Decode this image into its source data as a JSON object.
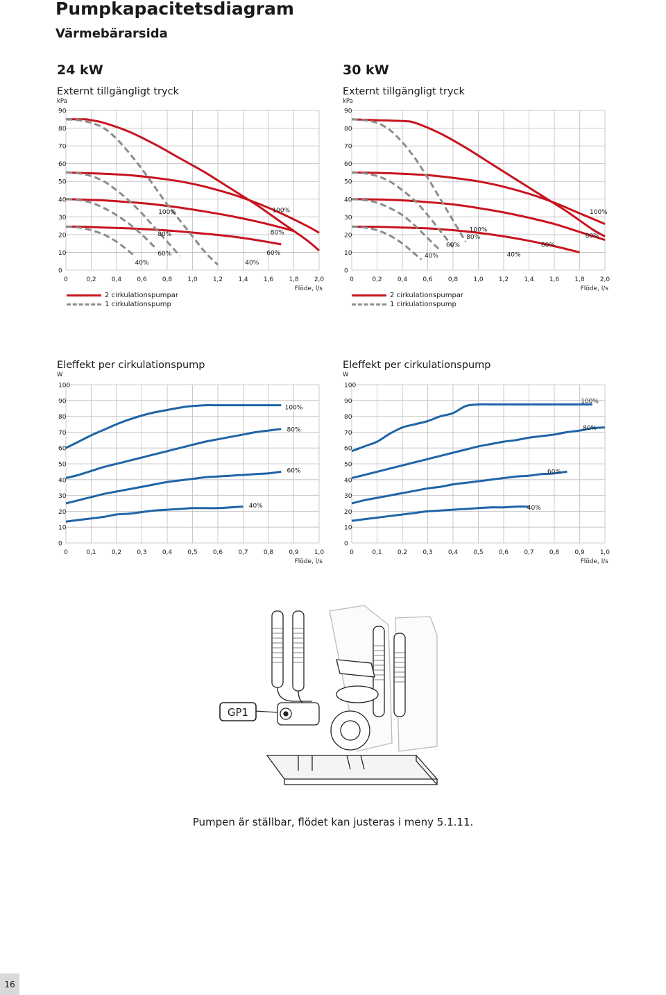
{
  "page": {
    "title": "Pumpkapacitetsdiagram",
    "subtitle": "Värmebärarsida",
    "page_number": "16",
    "caption": "Pumpen är ställbar, flödet kan justeras i meny 5.1.11."
  },
  "headings": {
    "left": "24 kW",
    "right": "30 kW"
  },
  "legend": {
    "solid": "2 cirkulationspumpar",
    "dashed": "1 cirkulationspump"
  },
  "illustration": {
    "label": "GP1"
  },
  "colors": {
    "red": "#c8141e",
    "grey": "#8c8c8c",
    "blue": "#1f64a6"
  },
  "chart_data": [
    {
      "type": "line",
      "title": "Externt tillgängligt tryck",
      "ylabel": "kPa",
      "xlabel": "Flöde, l/s",
      "xlim": [
        0,
        2.0
      ],
      "ylim": [
        0,
        90
      ],
      "xticks": [
        0,
        0.2,
        0.4,
        0.6,
        0.8,
        1.0,
        1.2,
        1.4,
        1.6,
        1.8,
        2.0
      ],
      "xtick_labels": [
        "0",
        "0,2",
        "0,4",
        "0,6",
        "0,8",
        "1,0",
        "1,2",
        "1,4",
        "1,6",
        "1,8",
        "2,0"
      ],
      "yticks": [
        0,
        10,
        20,
        30,
        40,
        50,
        60,
        70,
        80,
        90
      ],
      "ytick_labels": [
        "0",
        "10",
        "20",
        "30",
        "40",
        "50",
        "60",
        "70",
        "80",
        "90"
      ],
      "series": [
        {
          "name": "100%",
          "style": "solid",
          "x": [
            0,
            0.05,
            0.15,
            0.2,
            0.3,
            0.5,
            0.7,
            0.9,
            1.1,
            1.3,
            1.5,
            1.7,
            1.9,
            2.0
          ],
          "y": [
            85,
            85,
            85,
            84.5,
            83,
            78,
            71,
            63,
            55,
            46,
            37,
            27,
            17,
            11
          ]
        },
        {
          "name": "80%",
          "style": "solid",
          "x": [
            0,
            0.1,
            0.3,
            0.5,
            0.7,
            0.9,
            1.1,
            1.3,
            1.5,
            1.7,
            1.9,
            2.0
          ],
          "y": [
            55,
            54.8,
            54.3,
            53.5,
            52,
            50,
            47,
            43,
            38,
            32,
            25,
            21
          ]
        },
        {
          "name": "60%",
          "style": "solid",
          "x": [
            0,
            0.1,
            0.3,
            0.5,
            0.7,
            0.9,
            1.1,
            1.3,
            1.5,
            1.7,
            1.8
          ],
          "y": [
            40,
            39.8,
            39.3,
            38.3,
            37,
            35.2,
            33,
            30.5,
            27.5,
            24,
            22
          ]
        },
        {
          "name": "40%",
          "style": "solid",
          "x": [
            0,
            0.1,
            0.3,
            0.5,
            0.7,
            0.9,
            1.1,
            1.3,
            1.5,
            1.7
          ],
          "y": [
            24.5,
            24.5,
            24,
            23.5,
            22.8,
            21.8,
            20.5,
            19,
            17,
            14.5
          ]
        },
        {
          "name": "100%",
          "style": "dashed",
          "x": [
            0,
            0.1,
            0.2,
            0.3,
            0.4,
            0.5,
            0.6,
            0.7,
            0.8,
            0.9,
            1.0,
            1.1,
            1.2
          ],
          "y": [
            85,
            84.5,
            83,
            80,
            74,
            66,
            57,
            47,
            37,
            28,
            19,
            10,
            3
          ]
        },
        {
          "name": "80%",
          "style": "dashed",
          "x": [
            0,
            0.1,
            0.2,
            0.3,
            0.4,
            0.5,
            0.6,
            0.7,
            0.8,
            0.9
          ],
          "y": [
            55,
            54.5,
            53,
            50,
            45,
            39,
            32,
            24,
            16,
            8
          ]
        },
        {
          "name": "60%",
          "style": "dashed",
          "x": [
            0,
            0.1,
            0.2,
            0.3,
            0.4,
            0.5,
            0.6,
            0.7
          ],
          "y": [
            40,
            39.5,
            38,
            35,
            31,
            26,
            20,
            13
          ]
        },
        {
          "name": "40%",
          "style": "dashed",
          "x": [
            0,
            0.1,
            0.2,
            0.3,
            0.4,
            0.5,
            0.55
          ],
          "y": [
            24.5,
            24,
            22.5,
            20,
            16,
            10.5,
            7.5
          ]
        }
      ],
      "annotations": [
        {
          "text": "100%",
          "x": 0.8,
          "y": 33
        },
        {
          "text": "80%",
          "x": 0.78,
          "y": 20.5
        },
        {
          "text": "60%",
          "x": 0.78,
          "y": 9.5
        },
        {
          "text": "40%",
          "x": 0.6,
          "y": 4.5
        },
        {
          "text": "100%",
          "x": 1.7,
          "y": 34
        },
        {
          "text": "80%",
          "x": 1.67,
          "y": 21.5
        },
        {
          "text": "60%",
          "x": 1.64,
          "y": 10
        },
        {
          "text": "40%",
          "x": 1.47,
          "y": 4.5
        }
      ]
    },
    {
      "type": "line",
      "title": "Externt tillgängligt tryck",
      "ylabel": "kPa",
      "xlabel": "Flöde, l/s",
      "xlim": [
        0,
        2.0
      ],
      "ylim": [
        0,
        90
      ],
      "xticks": [
        0,
        0.2,
        0.4,
        0.6,
        0.8,
        1.0,
        1.2,
        1.4,
        1.6,
        1.8,
        2.0
      ],
      "xtick_labels": [
        "0",
        "0,2",
        "0,4",
        "0,6",
        "0,8",
        "1,0",
        "1,2",
        "1,4",
        "1,6",
        "1,8",
        "2,0"
      ],
      "yticks": [
        0,
        10,
        20,
        30,
        40,
        50,
        60,
        70,
        80,
        90
      ],
      "ytick_labels": [
        "0",
        "10",
        "20",
        "30",
        "40",
        "50",
        "60",
        "70",
        "80",
        "90"
      ],
      "series": [
        {
          "name": "100%",
          "style": "solid",
          "x": [
            0,
            0.2,
            0.4,
            0.5,
            0.7,
            0.9,
            1.1,
            1.3,
            1.5,
            1.7,
            1.9,
            2.0
          ],
          "y": [
            85,
            84.5,
            84,
            83,
            77,
            69,
            60,
            51,
            42,
            33,
            23,
            19
          ]
        },
        {
          "name": "80%",
          "style": "solid",
          "x": [
            0,
            0.2,
            0.4,
            0.6,
            0.8,
            1.0,
            1.2,
            1.4,
            1.6,
            1.8,
            2.0
          ],
          "y": [
            55,
            54.8,
            54.3,
            53.5,
            52,
            50,
            47,
            43,
            38,
            32,
            26
          ]
        },
        {
          "name": "60%",
          "style": "solid",
          "x": [
            0,
            0.2,
            0.4,
            0.6,
            0.8,
            1.0,
            1.2,
            1.4,
            1.6,
            1.8,
            2.0
          ],
          "y": [
            40,
            39.8,
            39.3,
            38.3,
            37,
            35,
            32.5,
            29.5,
            26,
            21.5,
            17
          ]
        },
        {
          "name": "40%",
          "style": "solid",
          "x": [
            0,
            0.2,
            0.4,
            0.6,
            0.8,
            1.0,
            1.2,
            1.4,
            1.6,
            1.8
          ],
          "y": [
            24.5,
            24.4,
            24,
            23.5,
            22.5,
            21,
            19,
            16.5,
            13.5,
            10
          ]
        },
        {
          "name": "100%",
          "style": "dashed",
          "x": [
            0,
            0.1,
            0.2,
            0.3,
            0.4,
            0.5,
            0.6,
            0.7,
            0.8,
            0.9
          ],
          "y": [
            85,
            84.5,
            83,
            79,
            72,
            63,
            52,
            40,
            28,
            16
          ]
        },
        {
          "name": "80%",
          "style": "dashed",
          "x": [
            0,
            0.1,
            0.2,
            0.3,
            0.4,
            0.5,
            0.6,
            0.7,
            0.8
          ],
          "y": [
            55,
            54.5,
            53,
            50,
            45,
            39,
            31,
            22,
            13
          ]
        },
        {
          "name": "60%",
          "style": "dashed",
          "x": [
            0,
            0.1,
            0.2,
            0.3,
            0.4,
            0.5,
            0.6,
            0.7
          ],
          "y": [
            40,
            39.5,
            38,
            35,
            31,
            25,
            18,
            11
          ]
        },
        {
          "name": "40%",
          "style": "dashed",
          "x": [
            0,
            0.1,
            0.2,
            0.3,
            0.4,
            0.5,
            0.55
          ],
          "y": [
            24.5,
            24,
            22.5,
            19.5,
            15,
            9,
            6
          ]
        }
      ],
      "annotations": [
        {
          "text": "100%",
          "x": 1.95,
          "y": 33
        },
        {
          "text": "80%",
          "x": 1.9,
          "y": 19.5
        },
        {
          "text": "60%",
          "x": 1.55,
          "y": 14.5
        },
        {
          "text": "40%",
          "x": 1.28,
          "y": 9
        },
        {
          "text": "100%",
          "x": 1.0,
          "y": 23
        },
        {
          "text": "80%",
          "x": 0.96,
          "y": 19
        },
        {
          "text": "60%",
          "x": 0.8,
          "y": 14.5
        },
        {
          "text": "40%",
          "x": 0.63,
          "y": 8.5
        }
      ]
    },
    {
      "type": "line",
      "title": "Eleffekt per cirkulationspump",
      "ylabel": "W",
      "xlabel": "Flöde, l/s",
      "xlim": [
        0,
        1.0
      ],
      "ylim": [
        0,
        100
      ],
      "xticks": [
        0,
        0.1,
        0.2,
        0.3,
        0.4,
        0.5,
        0.6,
        0.7,
        0.8,
        0.9,
        1.0
      ],
      "xtick_labels": [
        "0",
        "0,1",
        "0,2",
        "0,3",
        "0,4",
        "0,5",
        "0,6",
        "0,7",
        "0,8",
        "0,9",
        "1,0"
      ],
      "yticks": [
        0,
        10,
        20,
        30,
        40,
        50,
        60,
        70,
        80,
        90,
        100
      ],
      "ytick_labels": [
        "0",
        "10",
        "20",
        "30",
        "40",
        "50",
        "60",
        "70",
        "80",
        "90",
        "100"
      ],
      "series": [
        {
          "name": "100%",
          "style": "solid",
          "x": [
            0,
            0.05,
            0.1,
            0.15,
            0.2,
            0.25,
            0.3,
            0.35,
            0.4,
            0.45,
            0.5,
            0.55,
            0.6,
            0.65,
            0.7,
            0.75,
            0.8,
            0.85
          ],
          "y": [
            60,
            64,
            68,
            71.5,
            75,
            78,
            80.5,
            82.5,
            84,
            85.5,
            86.5,
            87,
            87,
            87,
            87,
            87,
            87,
            87
          ]
        },
        {
          "name": "80%",
          "style": "solid",
          "x": [
            0,
            0.05,
            0.1,
            0.15,
            0.2,
            0.25,
            0.3,
            0.35,
            0.4,
            0.45,
            0.5,
            0.55,
            0.6,
            0.65,
            0.7,
            0.75,
            0.8,
            0.85
          ],
          "y": [
            41,
            43,
            45.5,
            48,
            50,
            52,
            54,
            56,
            58,
            60,
            62,
            64,
            65.5,
            67,
            68.5,
            70,
            71,
            72
          ]
        },
        {
          "name": "60%",
          "style": "solid",
          "x": [
            0,
            0.05,
            0.1,
            0.15,
            0.2,
            0.25,
            0.3,
            0.35,
            0.4,
            0.45,
            0.5,
            0.55,
            0.6,
            0.65,
            0.7,
            0.75,
            0.8,
            0.85
          ],
          "y": [
            25,
            27,
            29,
            31,
            32.5,
            34,
            35.5,
            37,
            38.5,
            39.5,
            40.5,
            41.5,
            42,
            42.5,
            43,
            43.5,
            44,
            45
          ]
        },
        {
          "name": "40%",
          "style": "solid",
          "x": [
            0,
            0.05,
            0.1,
            0.15,
            0.2,
            0.25,
            0.3,
            0.35,
            0.4,
            0.45,
            0.5,
            0.55,
            0.6,
            0.65,
            0.7
          ],
          "y": [
            13.5,
            14.5,
            15.5,
            16.5,
            18,
            18.5,
            19.5,
            20.5,
            21,
            21.5,
            22,
            22,
            22,
            22.5,
            23
          ]
        }
      ],
      "annotations": [
        {
          "text": "100%",
          "x": 0.9,
          "y": 86
        },
        {
          "text": "80%",
          "x": 0.9,
          "y": 72
        },
        {
          "text": "60%",
          "x": 0.9,
          "y": 46
        },
        {
          "text": "40%",
          "x": 0.75,
          "y": 24
        }
      ]
    },
    {
      "type": "line",
      "title": "Eleffekt per cirkulationspump",
      "ylabel": "W",
      "xlabel": "Flöde, l/s",
      "xlim": [
        0,
        1.0
      ],
      "ylim": [
        0,
        100
      ],
      "xticks": [
        0,
        0.1,
        0.2,
        0.3,
        0.4,
        0.5,
        0.6,
        0.7,
        0.8,
        0.9,
        1.0
      ],
      "xtick_labels": [
        "0",
        "0,1",
        "0,2",
        "0,3",
        "0,4",
        "0,5",
        "0,6",
        "0,7",
        "0,8",
        "0,9",
        "1,0"
      ],
      "yticks": [
        0,
        10,
        20,
        30,
        40,
        50,
        60,
        70,
        80,
        90,
        100
      ],
      "ytick_labels": [
        "0",
        "10",
        "20",
        "30",
        "40",
        "50",
        "60",
        "70",
        "80",
        "90",
        "100"
      ],
      "series": [
        {
          "name": "100%",
          "style": "solid",
          "x": [
            0,
            0.05,
            0.1,
            0.15,
            0.2,
            0.25,
            0.3,
            0.35,
            0.4,
            0.45,
            0.5,
            0.55,
            0.6,
            0.65,
            0.7,
            0.75,
            0.8,
            0.85,
            0.9,
            0.95
          ],
          "y": [
            58,
            61,
            64,
            69,
            73,
            75,
            77,
            80,
            82,
            86.5,
            87.5,
            87.5,
            87.5,
            87.5,
            87.5,
            87.5,
            87.5,
            87.5,
            87.5,
            87.5
          ]
        },
        {
          "name": "80%",
          "style": "solid",
          "x": [
            0,
            0.05,
            0.1,
            0.15,
            0.2,
            0.25,
            0.3,
            0.35,
            0.4,
            0.45,
            0.5,
            0.55,
            0.6,
            0.65,
            0.7,
            0.75,
            0.8,
            0.85,
            0.9,
            0.95,
            1.0
          ],
          "y": [
            41,
            43,
            45,
            47,
            49,
            51,
            53,
            55,
            57,
            59,
            61,
            62.5,
            64,
            65,
            66.5,
            67.5,
            68.5,
            70,
            71,
            72.5,
            73
          ]
        },
        {
          "name": "60%",
          "style": "solid",
          "x": [
            0,
            0.05,
            0.1,
            0.15,
            0.2,
            0.25,
            0.3,
            0.35,
            0.4,
            0.45,
            0.5,
            0.55,
            0.6,
            0.65,
            0.7,
            0.75,
            0.8,
            0.85
          ],
          "y": [
            25,
            27,
            28.5,
            30,
            31.5,
            33,
            34.5,
            35.5,
            37,
            38,
            39,
            40,
            41,
            42,
            42.5,
            43.5,
            44,
            45
          ]
        },
        {
          "name": "40%",
          "style": "solid",
          "x": [
            0,
            0.05,
            0.1,
            0.15,
            0.2,
            0.25,
            0.3,
            0.35,
            0.4,
            0.45,
            0.5,
            0.55,
            0.6,
            0.65,
            0.7
          ],
          "y": [
            14,
            15,
            16,
            17,
            18,
            19,
            20,
            20.5,
            21,
            21.5,
            22,
            22.5,
            22.5,
            23,
            23
          ]
        }
      ],
      "annotations": [
        {
          "text": "100%",
          "x": 0.94,
          "y": 90
        },
        {
          "text": "80%",
          "x": 0.94,
          "y": 73
        },
        {
          "text": "60%",
          "x": 0.8,
          "y": 45.5
        },
        {
          "text": "40%",
          "x": 0.72,
          "y": 22.5
        }
      ]
    }
  ]
}
